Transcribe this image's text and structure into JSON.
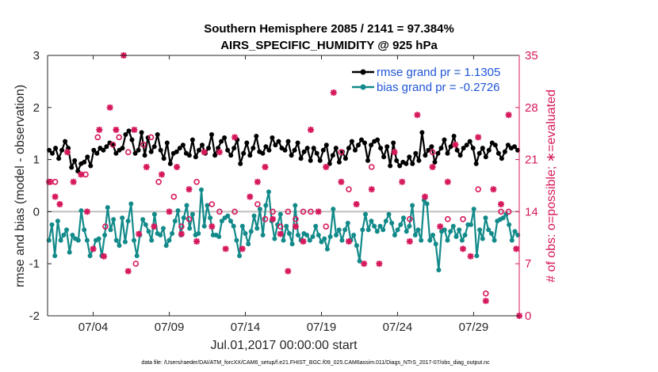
{
  "chart_data": {
    "type": "line",
    "title_line1": "Southern Hemisphere 2085 / 2141 = 97.384%",
    "title_line2": "AIRS_SPECIFIC_HUMIDITY @ 925 hPa",
    "xlabel": "Jul.01,2017 00:00:00 start",
    "ylabel_left": "rmse and bias (model - observation)",
    "ylabel_right": "# of obs: o=possible; ∗=evaluated",
    "x_range_days": [
      1.0,
      32.0
    ],
    "xticks": [
      4,
      9,
      14,
      19,
      24,
      29
    ],
    "xtick_labels": [
      "07/04",
      "07/09",
      "07/14",
      "07/19",
      "07/24",
      "07/29"
    ],
    "ylim_left": [
      -2,
      3
    ],
    "yticks_left": [
      "-2",
      "-1",
      "0",
      "1",
      "2",
      "3"
    ],
    "ylim_right": [
      0,
      35
    ],
    "yticks_right": [
      "0",
      "7",
      "14",
      "21",
      "28",
      "35"
    ],
    "colors": {
      "rmse": "#000000",
      "bias": "#138a8a",
      "obs": "#d6185c",
      "legend_text": "#1f55d6",
      "zero_line": "#bfbfbf"
    },
    "series": [
      {
        "name": "rmse grand pr = 1.1305",
        "values": [
          1.18,
          1.12,
          1.22,
          1.02,
          1.18,
          1.35,
          1.22,
          0.85,
          0.98,
          0.78,
          0.92,
          0.95,
          1.05,
          0.88,
          1.18,
          1.12,
          1.22,
          1.18,
          1.25,
          1.32,
          1.28,
          1.12,
          1.18,
          1.22,
          1.48,
          1.55,
          1.38,
          1.12,
          1.18,
          1.52,
          1.08,
          1.42,
          1.15,
          1.25,
          1.48,
          1.18,
          1.02,
          1.32,
          0.92,
          1.12,
          1.15,
          1.22,
          1.28,
          1.12,
          1.08,
          1.38,
          1.05,
          1.18,
          1.28,
          1.12,
          1.22,
          1.48,
          1.08,
          1.22,
          1.35,
          1.42,
          1.18,
          1.08,
          1.22,
          1.38,
          0.92,
          1.12,
          1.32,
          1.08,
          1.22,
          1.45,
          1.15,
          1.12,
          1.25,
          1.18,
          1.42,
          1.28,
          1.35,
          1.22,
          1.18,
          1.35,
          1.08,
          1.18,
          1.32,
          1.02,
          1.15,
          1.22,
          0.98,
          1.22,
          1.12,
          0.98,
          1.18,
          1.28,
          0.92,
          1.08,
          1.22,
          0.95,
          1.15,
          1.02,
          1.22,
          1.35,
          1.18,
          1.28,
          1.38,
          1.32,
          0.98,
          1.28,
          1.35,
          1.38,
          1.22,
          1.05,
          1.25,
          0.88,
          1.32,
          0.98,
          0.88,
          0.95,
          0.92,
          1.05,
          0.92,
          1.12,
          0.98,
          1.52,
          1.08,
          1.18,
          1.25,
          0.95,
          1.12,
          1.22,
          1.38,
          1.12,
          1.25,
          1.45,
          1.18,
          1.08,
          1.22,
          1.28,
          1.35,
          1.22,
          0.92,
          1.12,
          1.22,
          1.05,
          1.18,
          1.32,
          1.28,
          1.12,
          1.02,
          1.15,
          1.28,
          1.22,
          1.25,
          1.18
        ]
      },
      {
        "name": "bias grand pr = -0.2726",
        "values": [
          -0.55,
          -0.25,
          -0.85,
          -0.18,
          -0.55,
          -0.45,
          -0.35,
          -0.78,
          -0.45,
          -0.52,
          -0.55,
          0.02,
          -0.35,
          -0.55,
          -0.85,
          -0.72,
          -0.55,
          -0.52,
          -0.85,
          -0.45,
          0.08,
          -0.35,
          -0.15,
          -0.55,
          -0.65,
          -0.12,
          -0.58,
          -0.18,
          0.15,
          -0.55,
          -0.85,
          -0.45,
          -0.15,
          -0.25,
          -0.38,
          -0.55,
          -0.05,
          -0.42,
          -0.45,
          -0.32,
          -0.65,
          -0.55,
          -0.42,
          -0.18,
          0.02,
          -0.45,
          -0.12,
          0.12,
          -0.32,
          -0.05,
          -0.45,
          -0.42,
          0.42,
          -0.28,
          0.12,
          -0.12,
          -0.45,
          -0.45,
          -0.48,
          -0.18,
          -0.12,
          -0.08,
          -0.18,
          -0.28,
          -0.55,
          -0.85,
          -0.28,
          -0.42,
          -0.62,
          -0.38,
          -0.08,
          -0.32,
          0.05,
          -0.45,
          0.12,
          0.38,
          -0.18,
          -0.52,
          -0.25,
          -0.05,
          -0.55,
          -0.28,
          -0.42,
          -0.62,
          0.12,
          -0.45,
          -0.55,
          -0.42,
          -0.45,
          -0.55,
          -0.48,
          -0.28,
          -0.45,
          -0.58,
          -0.52,
          -0.72,
          -0.48,
          0.05,
          -0.45,
          -0.35,
          -0.55,
          -0.35,
          -0.22,
          -0.55,
          -0.45,
          -0.65,
          -0.95,
          -0.35,
          -0.05,
          -0.35,
          -0.18,
          -0.28,
          -0.38,
          -0.28,
          -0.35,
          -0.18,
          -0.05,
          -0.22,
          -0.45,
          -0.35,
          -0.25,
          -0.12,
          -0.38,
          -0.28,
          0.12,
          -0.45,
          -0.35,
          -0.55,
          0.22,
          0.15,
          -0.55,
          -0.45,
          -0.62,
          -1.12,
          -0.38,
          -0.35,
          -0.55,
          -0.38,
          -0.28,
          -0.48,
          -0.35,
          -0.55,
          -0.45,
          -0.25,
          -0.25,
          0.05,
          -0.85,
          -0.35,
          -0.52,
          -0.12,
          -0.35,
          -0.42,
          -0.55,
          -0.18,
          -0.15,
          -0.12,
          -0.05,
          -0.25,
          -0.55,
          -0.38,
          -0.45
        ]
      }
    ],
    "obs_possible": [
      [
        1.2,
        18
      ],
      [
        1.5,
        18
      ],
      [
        3.5,
        19
      ],
      [
        4.3,
        24
      ],
      [
        4.8,
        12
      ],
      [
        5.3,
        23
      ],
      [
        5.7,
        24
      ],
      [
        6.3,
        22
      ],
      [
        6.8,
        7
      ],
      [
        7.3,
        23
      ],
      [
        7.8,
        24
      ],
      [
        8.3,
        18
      ],
      [
        9.3,
        16
      ],
      [
        9.8,
        12
      ],
      [
        10.3,
        13
      ],
      [
        10.8,
        18
      ],
      [
        11.8,
        15
      ],
      [
        12.3,
        14
      ],
      [
        13.3,
        14
      ],
      [
        14.8,
        15
      ],
      [
        15.3,
        13
      ],
      [
        15.8,
        14
      ],
      [
        16.3,
        12
      ],
      [
        16.8,
        14
      ],
      [
        17.3,
        13
      ],
      [
        17.8,
        14
      ],
      [
        18.3,
        14
      ],
      [
        19.3,
        12
      ],
      [
        20.3,
        22
      ],
      [
        20.8,
        17
      ],
      [
        22.3,
        20
      ],
      [
        23.3,
        33
      ],
      [
        24.8,
        13
      ],
      [
        26.3,
        22
      ],
      [
        27.3,
        13
      ],
      [
        28.3,
        13
      ],
      [
        29.3,
        17
      ],
      [
        29.8,
        3
      ],
      [
        30.8,
        14
      ],
      [
        31.3,
        14
      ]
    ],
    "obs_evaluated": [
      [
        1.1,
        18
      ],
      [
        1.5,
        16
      ],
      [
        1.8,
        15
      ],
      [
        2.3,
        22
      ],
      [
        2.7,
        18
      ],
      [
        3.2,
        19
      ],
      [
        3.6,
        14
      ],
      [
        4.0,
        9
      ],
      [
        4.4,
        25
      ],
      [
        4.7,
        8
      ],
      [
        5.1,
        28
      ],
      [
        5.5,
        25
      ],
      [
        6.0,
        35
      ],
      [
        6.3,
        6
      ],
      [
        6.7,
        25
      ],
      [
        7.0,
        11
      ],
      [
        7.5,
        20
      ],
      [
        8.0,
        12
      ],
      [
        8.5,
        19
      ],
      [
        9.0,
        14
      ],
      [
        9.5,
        20
      ],
      [
        9.8,
        11
      ],
      [
        10.3,
        17
      ],
      [
        10.8,
        10
      ],
      [
        11.3,
        22
      ],
      [
        11.8,
        12
      ],
      [
        12.3,
        22
      ],
      [
        12.7,
        9
      ],
      [
        13.3,
        24
      ],
      [
        13.8,
        9
      ],
      [
        14.3,
        16
      ],
      [
        14.8,
        18
      ],
      [
        15.3,
        20
      ],
      [
        15.8,
        13
      ],
      [
        16.3,
        11
      ],
      [
        16.8,
        6
      ],
      [
        17.3,
        12
      ],
      [
        17.8,
        10
      ],
      [
        18.3,
        25
      ],
      [
        18.8,
        14
      ],
      [
        19.3,
        20
      ],
      [
        19.8,
        30
      ],
      [
        20.3,
        18
      ],
      [
        20.8,
        10
      ],
      [
        21.3,
        15
      ],
      [
        21.8,
        7
      ],
      [
        22.3,
        17
      ],
      [
        22.8,
        7
      ],
      [
        23.3,
        31
      ],
      [
        23.8,
        22
      ],
      [
        24.3,
        18
      ],
      [
        24.8,
        10
      ],
      [
        25.3,
        27
      ],
      [
        25.8,
        16
      ],
      [
        26.3,
        20
      ],
      [
        26.8,
        12
      ],
      [
        27.3,
        18
      ],
      [
        27.8,
        23
      ],
      [
        28.3,
        9
      ],
      [
        28.8,
        8
      ],
      [
        29.3,
        24
      ],
      [
        29.8,
        2
      ],
      [
        30.3,
        17
      ],
      [
        30.8,
        15
      ],
      [
        31.3,
        27
      ],
      [
        31.8,
        9
      ],
      [
        32.0,
        0
      ]
    ]
  }
}
